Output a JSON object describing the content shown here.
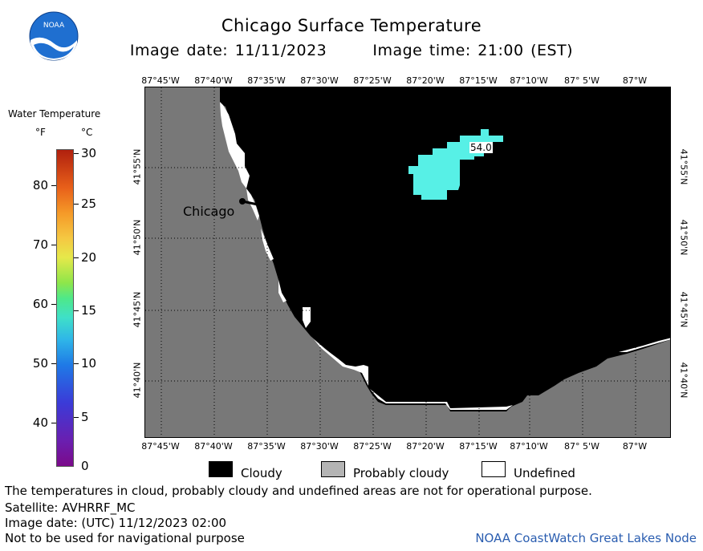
{
  "header": {
    "title": "Chicago Surface Temperature",
    "image_date_label": "Image date: 11/11/2023",
    "image_time_label": "Image time: 21:00 (EST)"
  },
  "logo": {
    "text": "NOAA",
    "icon": "noaa-logo"
  },
  "map": {
    "lon_labels": [
      "87°45'W",
      "87°40'W",
      "87°35'W",
      "87°30'W",
      "87°25'W",
      "87°20'W",
      "87°15'W",
      "87°10'W",
      "87° 5'W",
      "87°W"
    ],
    "lat_labels": [
      "41°55'N",
      "41°50'N",
      "41°45'N",
      "41°40'N"
    ],
    "city": "Chicago",
    "sst_value_label": "54.0",
    "colors": {
      "land": "#787878",
      "water_cloudy": "#000000",
      "undefined": "#ffffff",
      "sst_cyan": "#57f0e6",
      "grid": "#000000"
    }
  },
  "legend": {
    "title": "Water Temperature",
    "unit_f": "°F",
    "unit_c": "°C",
    "f_ticks": [
      "80",
      "70",
      "60",
      "50",
      "40"
    ],
    "c_ticks": [
      "30",
      "25",
      "20",
      "15",
      "10",
      "5",
      "0"
    ]
  },
  "key": {
    "items": [
      {
        "label": "Cloudy",
        "color": "#000000"
      },
      {
        "label": "Probably cloudy",
        "color": "#b4b4b4"
      },
      {
        "label": "Undefined",
        "color": "#ffffff"
      }
    ]
  },
  "footer": {
    "note": "The temperatures in cloud, probably cloudy and undefined areas are not for operational purpose.",
    "satellite": "Satellite: AVHRRF_MC",
    "utc_date": "Image date: (UTC) 11/12/2023  02:00",
    "nav_warning": "Not to be used for navigational purpose",
    "node": "NOAA CoastWatch Great Lakes Node"
  }
}
